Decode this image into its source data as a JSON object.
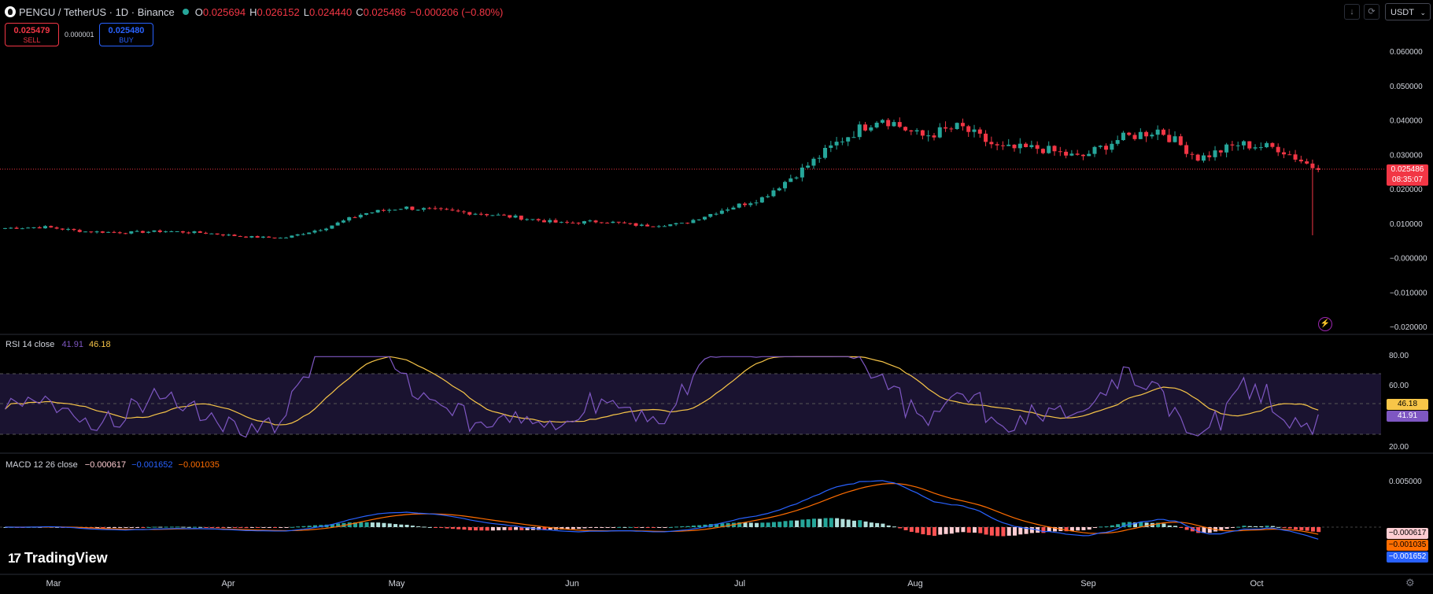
{
  "header": {
    "symbol": "PENGU / TetherUS · 1D · Binance",
    "o_label": "O",
    "o_value": "0.025694",
    "h_label": "H",
    "h_value": "0.026152",
    "l_label": "L",
    "l_value": "0.024440",
    "c_label": "C",
    "c_value": "0.025486",
    "change": "−0.000206 (−0.80%)",
    "down_color": "#f23645",
    "up_color": "#26a69a"
  },
  "trade": {
    "sell_price": "0.025479",
    "sell_label": "SELL",
    "buy_price": "0.025480",
    "buy_label": "BUY",
    "spread": "0.000001"
  },
  "toolbar": {
    "currency": "USDT",
    "download_icon": "download-icon",
    "refresh_icon": "refresh-icon"
  },
  "price_axis": {
    "ticks": [
      "0.060000",
      "0.050000",
      "0.040000",
      "0.030000",
      "0.020000",
      "0.010000",
      "−0.000000",
      "−0.010000",
      "−0.020000"
    ],
    "last_price": "0.025486",
    "countdown": "08:35:07"
  },
  "rsi": {
    "label": "RSI 14 close",
    "value": "41.91",
    "ma_value": "46.18",
    "ticks": [
      "80.00",
      "60.00",
      "20.00"
    ],
    "line_color": "#7e57c2",
    "ma_color": "#f7c548"
  },
  "macd": {
    "label": "MACD 12 26 close",
    "hist_value": "−0.000617",
    "macd_value": "−0.001652",
    "signal_value": "−0.001035",
    "ticks": [
      "0.005000"
    ],
    "tag_hist": "−0.000617",
    "tag_signal": "−0.001035",
    "tag_macd": "−0.001652",
    "macd_color": "#2962ff",
    "signal_color": "#ff6d00"
  },
  "time_axis": {
    "labels": [
      "Mar",
      "Apr",
      "May",
      "Jun",
      "Jul",
      "Aug",
      "Sep",
      "Oct"
    ]
  },
  "branding": {
    "logo_text": "TradingView"
  },
  "chart_data": {
    "type": "candlestick",
    "x": [
      "Feb 24",
      "Mar 3",
      "Mar 10",
      "Mar 17",
      "Mar 24",
      "Mar 31",
      "Apr 7",
      "Apr 14",
      "Apr 21",
      "Apr 28",
      "May 5",
      "May 12",
      "May 19",
      "May 26",
      "Jun 2",
      "Jun 9",
      "Jun 16",
      "Jun 23",
      "Jun 30",
      "Jul 7",
      "Jul 14",
      "Jul 21",
      "Jul 28",
      "Aug 4",
      "Aug 11",
      "Aug 18",
      "Aug 25",
      "Sep 1",
      "Sep 8",
      "Sep 15",
      "Sep 22",
      "Sep 29",
      "Oct 6",
      "Oct 11"
    ],
    "close": [
      0.0086,
      0.0089,
      0.0076,
      0.0073,
      0.0077,
      0.0072,
      0.0061,
      0.0057,
      0.0085,
      0.0128,
      0.0146,
      0.0136,
      0.0128,
      0.0115,
      0.01,
      0.0106,
      0.0093,
      0.0098,
      0.0138,
      0.0172,
      0.0253,
      0.0342,
      0.041,
      0.0352,
      0.038,
      0.0316,
      0.0318,
      0.029,
      0.0345,
      0.0372,
      0.0288,
      0.033,
      0.0318,
      0.0255
    ],
    "ylim": [
      -0.02,
      0.065
    ],
    "rsi_ylim": [
      15,
      90
    ],
    "rsi_bands": [
      30,
      50,
      70
    ]
  }
}
